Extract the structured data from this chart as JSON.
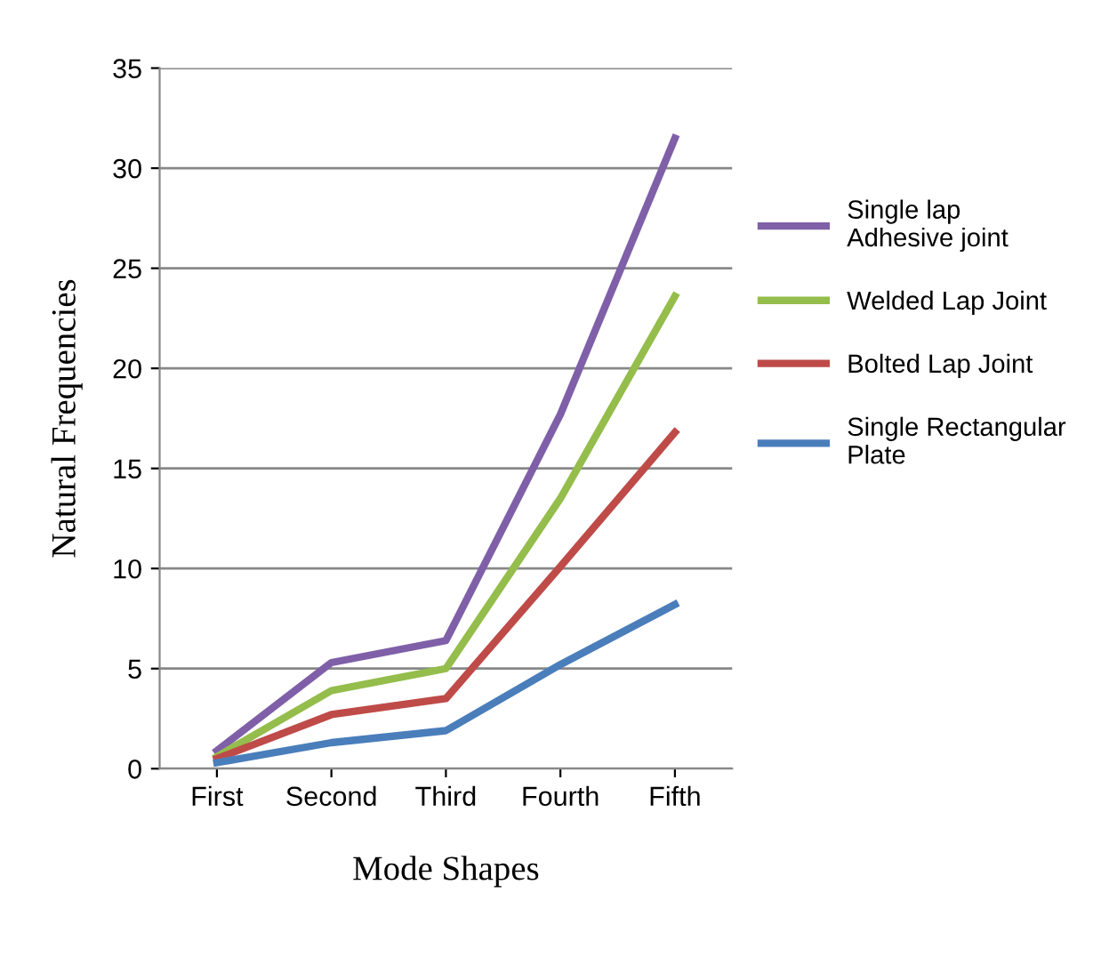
{
  "chart_data": {
    "type": "line",
    "xlabel": "Mode Shapes",
    "ylabel": "Natural Frequencies",
    "categories": [
      "First",
      "Second",
      "Third",
      "Fourth",
      "Fifth"
    ],
    "series": [
      {
        "name": "Single lap  Adhesive joint",
        "color": "#7f60a8",
        "values": [
          0.9,
          5.3,
          6.4,
          17.7,
          31.5
        ]
      },
      {
        "name": "Welded Lap Joint",
        "color": "#94bd4c",
        "values": [
          0.6,
          3.9,
          5.0,
          13.5,
          23.6
        ]
      },
      {
        "name": "Bolted Lap Joint",
        "color": "#be4b48",
        "values": [
          0.5,
          2.7,
          3.5,
          10.1,
          16.8
        ]
      },
      {
        "name": "Single Rectangular Plate",
        "color": "#4a7ebb",
        "values": [
          0.3,
          1.3,
          1.9,
          5.2,
          8.2
        ]
      }
    ],
    "ylim": [
      0,
      35
    ],
    "yticks": [
      0,
      5,
      10,
      15,
      20,
      25,
      30,
      35
    ],
    "grid": "y",
    "legend": "right",
    "marker": "none",
    "line_style": "solid"
  }
}
